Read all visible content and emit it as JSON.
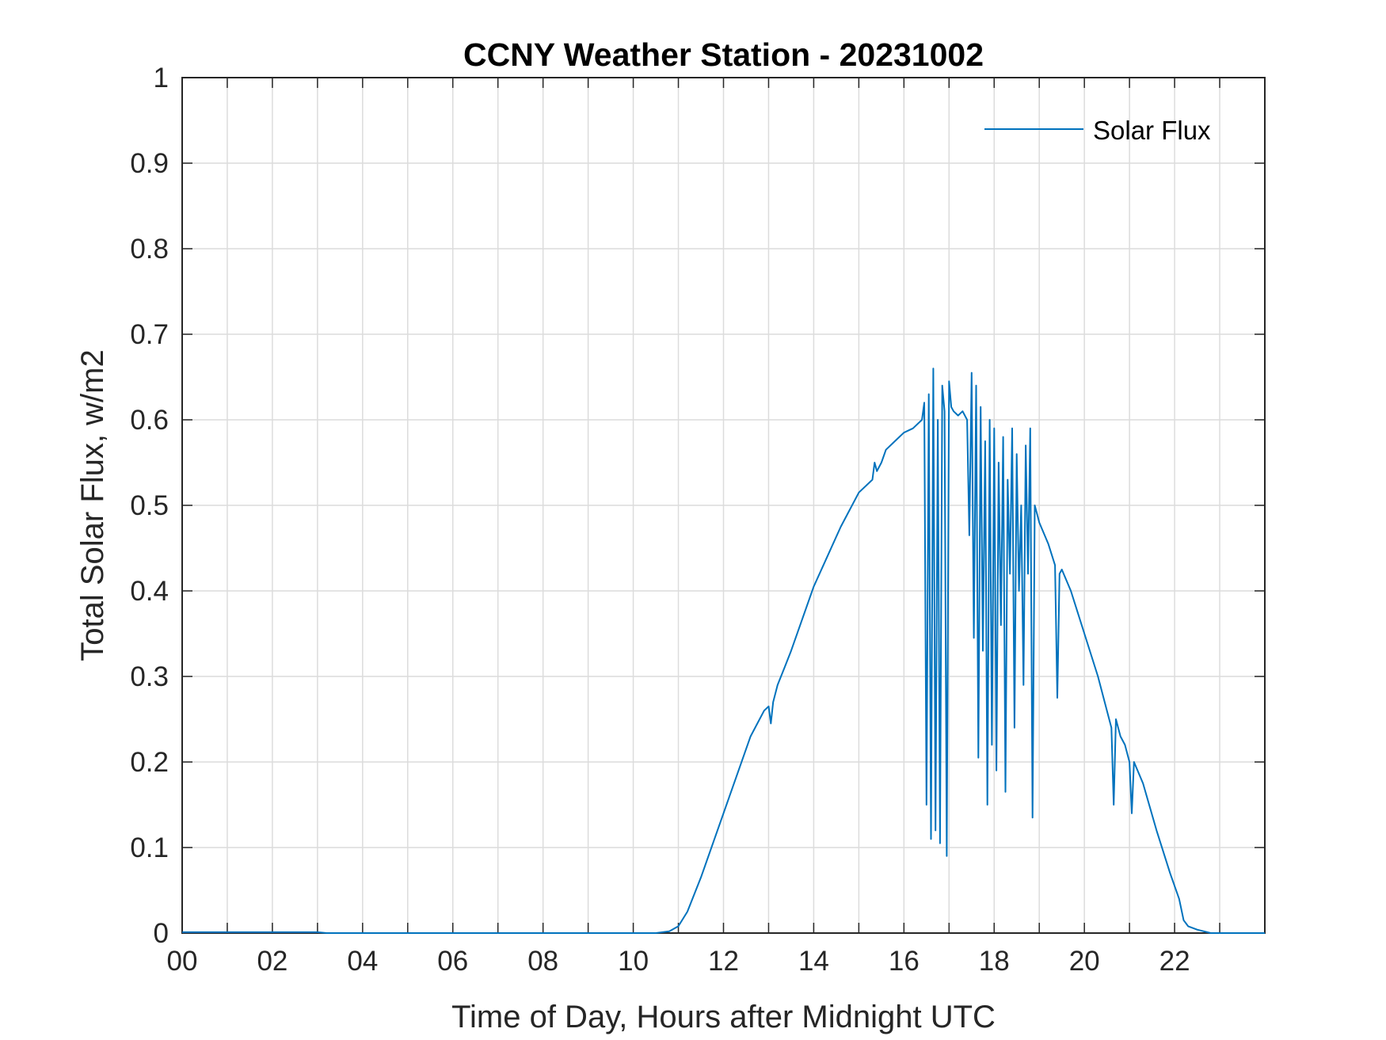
{
  "chart_data": {
    "type": "line",
    "title": "CCNY Weather Station - 20231002",
    "xlabel": "Time of Day, Hours after Midnight UTC",
    "ylabel": "Total Solar Flux, w/m2",
    "xlim": [
      0,
      24
    ],
    "ylim": [
      0,
      1
    ],
    "xticks": [
      0,
      2,
      4,
      6,
      8,
      10,
      12,
      14,
      16,
      18,
      20,
      22
    ],
    "xtick_labels": [
      "00",
      "02",
      "04",
      "06",
      "08",
      "10",
      "12",
      "14",
      "16",
      "18",
      "20",
      "22"
    ],
    "yticks": [
      0,
      0.1,
      0.2,
      0.3,
      0.4,
      0.5,
      0.6,
      0.7,
      0.8,
      0.9,
      1
    ],
    "ytick_labels": [
      "0",
      "0.1",
      "0.2",
      "0.3",
      "0.4",
      "0.5",
      "0.6",
      "0.7",
      "0.8",
      "0.9",
      "1"
    ],
    "grid": true,
    "legend_position": "top-right",
    "series": [
      {
        "name": "Solar Flux",
        "color": "#0072BD",
        "x": [
          0,
          3,
          3.2,
          10.5,
          10.8,
          11.0,
          11.2,
          11.5,
          11.8,
          12.0,
          12.3,
          12.6,
          12.9,
          13.0,
          13.05,
          13.1,
          13.2,
          13.35,
          13.5,
          13.7,
          14.0,
          14.3,
          14.6,
          15.0,
          15.3,
          15.35,
          15.4,
          15.5,
          15.6,
          15.8,
          16.0,
          16.2,
          16.4,
          16.45,
          16.5,
          16.55,
          16.6,
          16.65,
          16.7,
          16.75,
          16.8,
          16.85,
          16.9,
          16.95,
          17.0,
          17.05,
          17.1,
          17.2,
          17.3,
          17.4,
          17.45,
          17.5,
          17.55,
          17.6,
          17.65,
          17.7,
          17.75,
          17.8,
          17.85,
          17.9,
          17.95,
          18.0,
          18.05,
          18.1,
          18.15,
          18.2,
          18.25,
          18.3,
          18.35,
          18.4,
          18.45,
          18.5,
          18.55,
          18.6,
          18.65,
          18.7,
          18.75,
          18.8,
          18.85,
          18.9,
          18.95,
          19.0,
          19.2,
          19.35,
          19.4,
          19.45,
          19.5,
          19.7,
          20.0,
          20.3,
          20.6,
          20.65,
          20.7,
          20.8,
          20.9,
          21.0,
          21.05,
          21.1,
          21.3,
          21.6,
          21.9,
          22.1,
          22.2,
          22.3,
          22.5,
          22.8,
          23.0,
          23.3,
          24.0
        ],
        "y": [
          0.001,
          0.001,
          0.0,
          0.0,
          0.002,
          0.008,
          0.025,
          0.065,
          0.11,
          0.14,
          0.185,
          0.23,
          0.26,
          0.265,
          0.245,
          0.27,
          0.29,
          0.31,
          0.33,
          0.36,
          0.405,
          0.44,
          0.475,
          0.515,
          0.53,
          0.55,
          0.54,
          0.55,
          0.565,
          0.575,
          0.585,
          0.59,
          0.6,
          0.62,
          0.15,
          0.63,
          0.11,
          0.66,
          0.12,
          0.6,
          0.105,
          0.64,
          0.61,
          0.09,
          0.645,
          0.615,
          0.61,
          0.605,
          0.61,
          0.6,
          0.465,
          0.655,
          0.345,
          0.64,
          0.205,
          0.615,
          0.33,
          0.575,
          0.15,
          0.6,
          0.22,
          0.59,
          0.19,
          0.55,
          0.36,
          0.58,
          0.165,
          0.53,
          0.42,
          0.59,
          0.24,
          0.56,
          0.4,
          0.5,
          0.29,
          0.57,
          0.42,
          0.59,
          0.135,
          0.5,
          0.49,
          0.48,
          0.455,
          0.43,
          0.275,
          0.42,
          0.425,
          0.4,
          0.35,
          0.3,
          0.24,
          0.15,
          0.25,
          0.23,
          0.22,
          0.2,
          0.14,
          0.2,
          0.175,
          0.12,
          0.07,
          0.04,
          0.015,
          0.008,
          0.004,
          0.0,
          0.0,
          0.0,
          0.0
        ]
      }
    ]
  }
}
